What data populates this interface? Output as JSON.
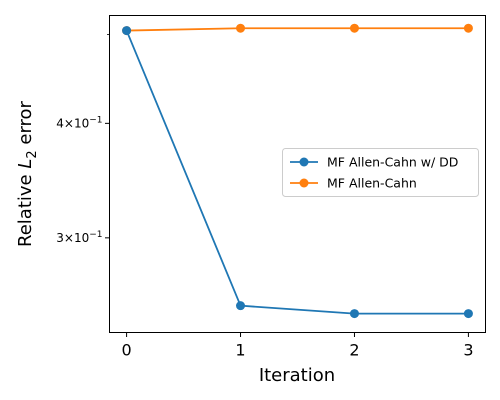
{
  "chart_data": {
    "type": "line",
    "xlabel": "Iteration",
    "ylabel_prefix": "Relative ",
    "ylabel_var": "L",
    "ylabel_sub": "2",
    "ylabel_suffix": " error",
    "yscale": "log",
    "xlim": [
      -0.15,
      3.15
    ],
    "ylim": [
      0.2365,
      0.5245
    ],
    "x_ticks": [
      {
        "value": 0,
        "label": "0"
      },
      {
        "value": 1,
        "label": "1"
      },
      {
        "value": 2,
        "label": "2"
      },
      {
        "value": 3,
        "label": "3"
      }
    ],
    "y_ticks": [
      {
        "value": 0.3,
        "mantissa": "3",
        "times": "×",
        "base": "10",
        "exp": "−1"
      },
      {
        "value": 0.4,
        "mantissa": "4",
        "times": "×",
        "base": "10",
        "exp": "−1"
      }
    ],
    "y_minor_ticks": [
      0.5
    ],
    "grid": false,
    "legend_position": "center-right",
    "x": [
      0,
      1,
      2,
      3
    ],
    "series": [
      {
        "name": "MF Allen-Cahn w/ DD",
        "color": "#1f77b4",
        "values": [
          0.505,
          0.253,
          0.248,
          0.248
        ]
      },
      {
        "name": "MF Allen-Cahn",
        "color": "#ff7f0e",
        "values": [
          0.505,
          0.508,
          0.508,
          0.508
        ]
      }
    ]
  }
}
